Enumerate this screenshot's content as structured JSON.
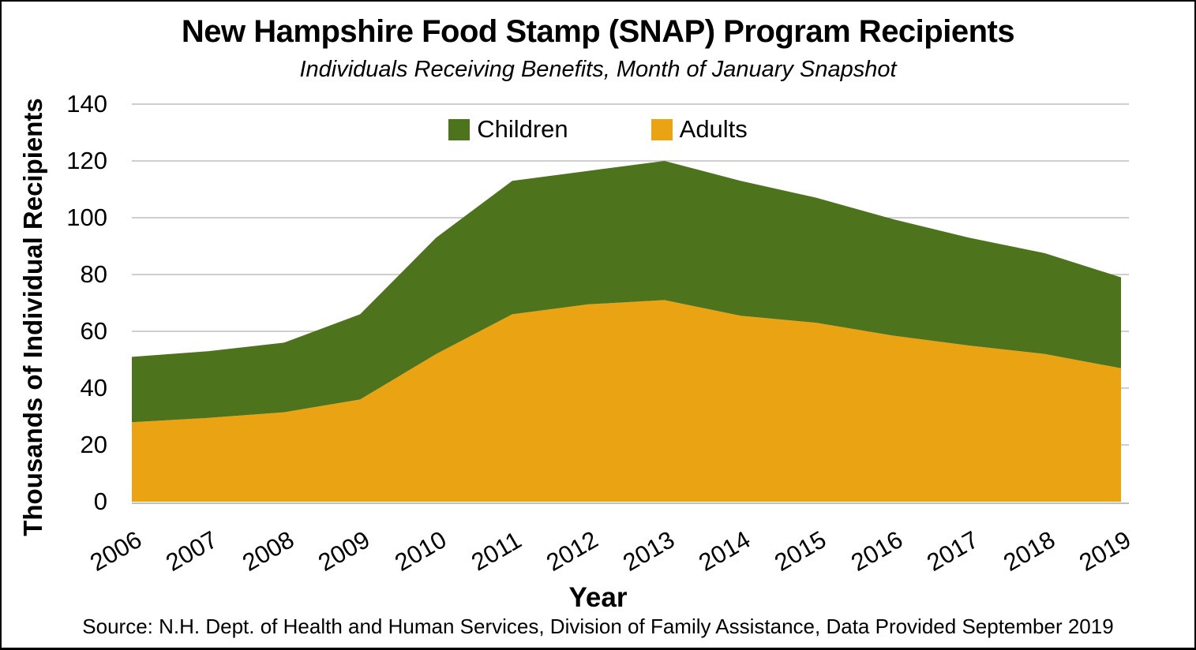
{
  "chart_data": {
    "type": "area",
    "stacked": true,
    "title": "New Hampshire Food Stamp (SNAP) Program Recipients",
    "subtitle": "Individuals Receiving Benefits, Month of January Snapshot",
    "xlabel": "Year",
    "ylabel": "Thousands of Individual Recipients",
    "categories": [
      "2006",
      "2007",
      "2008",
      "2009",
      "2010",
      "2011",
      "2012",
      "2013",
      "2014",
      "2015",
      "2016",
      "2017",
      "2018",
      "2019"
    ],
    "series": [
      {
        "name": "Adults",
        "color": "#E9A313",
        "values": [
          28,
          29.5,
          31.5,
          36,
          52,
          66,
          69.5,
          71,
          65.5,
          63,
          58.5,
          55,
          52,
          47
        ]
      },
      {
        "name": "Children",
        "color": "#4E731D",
        "values": [
          23,
          23.5,
          24.5,
          30,
          41,
          47,
          47,
          49,
          47.5,
          44,
          41,
          38,
          35.5,
          32
        ]
      }
    ],
    "totals": [
      51,
      53,
      56,
      66,
      93,
      113,
      116.5,
      120,
      113,
      107,
      99.5,
      93,
      87.5,
      79
    ],
    "legend": [
      "Children",
      "Adults"
    ],
    "legend_position": "top-center",
    "ylim": [
      0,
      140
    ],
    "yticks": [
      0,
      20,
      40,
      60,
      80,
      100,
      120,
      140
    ],
    "grid": true,
    "grid_color": "#BFBFBF",
    "text_color": "#000000",
    "units": "thousands of individual recipients, January snapshot of each year"
  },
  "source_note": "Source: N.H. Dept. of Health and Human Services, Division of Family Assistance, Data Provided September 2019"
}
